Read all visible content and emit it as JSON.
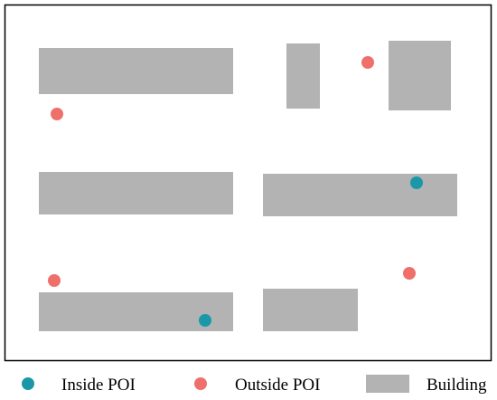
{
  "colors": {
    "frame": "#000000",
    "building": "#b3b3b3",
    "inside_poi": "#1b98a8",
    "outside_poi": "#ef6f6a",
    "background": "#ffffff"
  },
  "legend": {
    "inside_label": "Inside POI",
    "outside_label": "Outside POI",
    "building_label": "Building"
  },
  "buildings_count": 7,
  "inside_poi_count": 2,
  "outside_poi_count": 4
}
